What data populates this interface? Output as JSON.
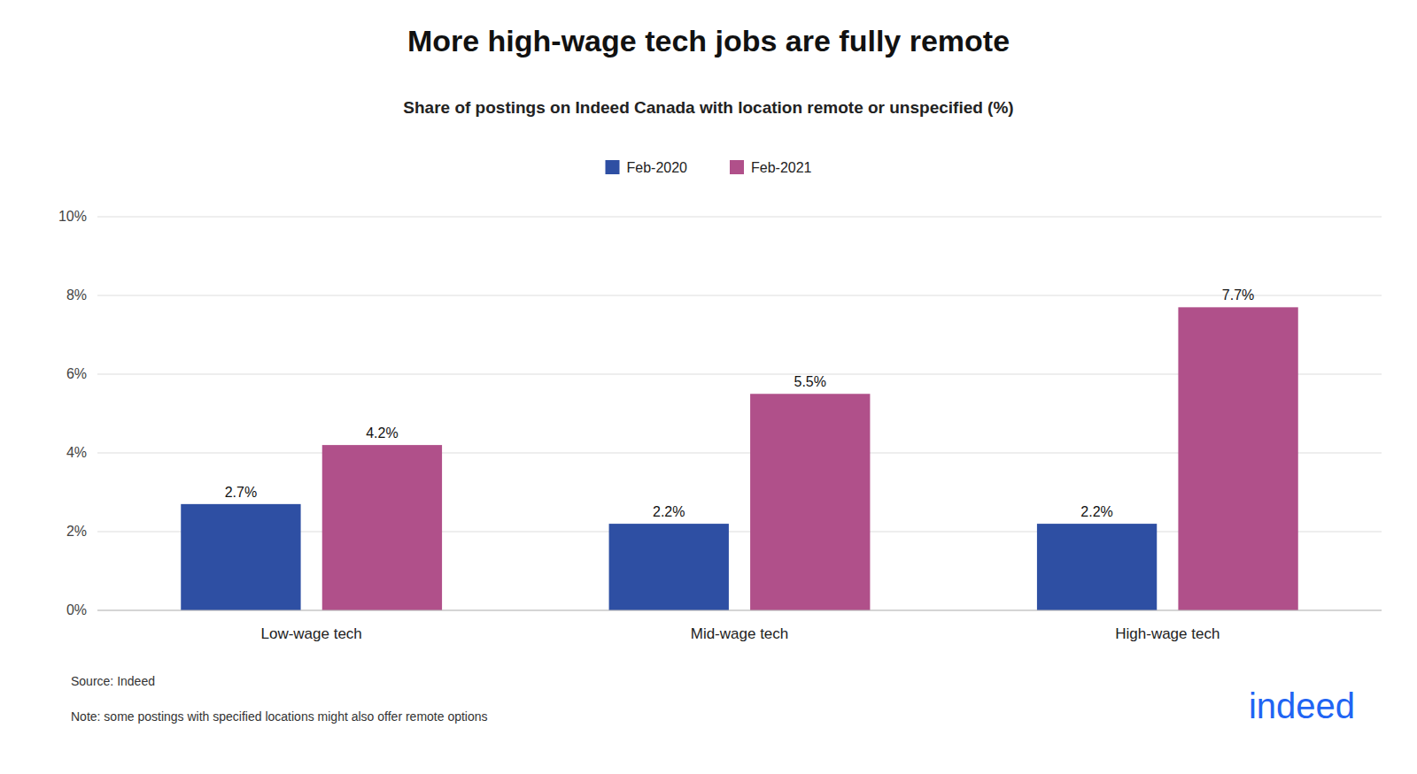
{
  "chart_data": {
    "type": "bar",
    "title": "More high-wage tech jobs are fully remote",
    "subtitle": "Share of postings on Indeed Canada with location remote or unspecified (%)",
    "categories": [
      "Low-wage tech",
      "Mid-wage tech",
      "High-wage tech"
    ],
    "series": [
      {
        "name": "Feb-2020",
        "color": "#2e4fa3",
        "values": [
          2.7,
          2.2,
          2.2
        ],
        "value_labels": [
          "2.7%",
          "2.2%",
          "2.2%"
        ]
      },
      {
        "name": "Feb-2021",
        "color": "#b0508a",
        "values": [
          4.2,
          5.5,
          7.7
        ],
        "value_labels": [
          "4.2%",
          "5.5%",
          "7.7%"
        ]
      }
    ],
    "ylim": [
      0,
      10
    ],
    "yticks": [
      {
        "value": 0,
        "label": "0%"
      },
      {
        "value": 2,
        "label": "2%"
      },
      {
        "value": 4,
        "label": "4%"
      },
      {
        "value": 6,
        "label": "6%"
      },
      {
        "value": 8,
        "label": "8%"
      },
      {
        "value": 10,
        "label": "10%"
      }
    ],
    "grid": true,
    "legend": "top",
    "data_labels": true,
    "annotations": [
      "Source: Indeed",
      "Note: some postings with specified locations might also offer remote options",
      "indeed"
    ]
  }
}
